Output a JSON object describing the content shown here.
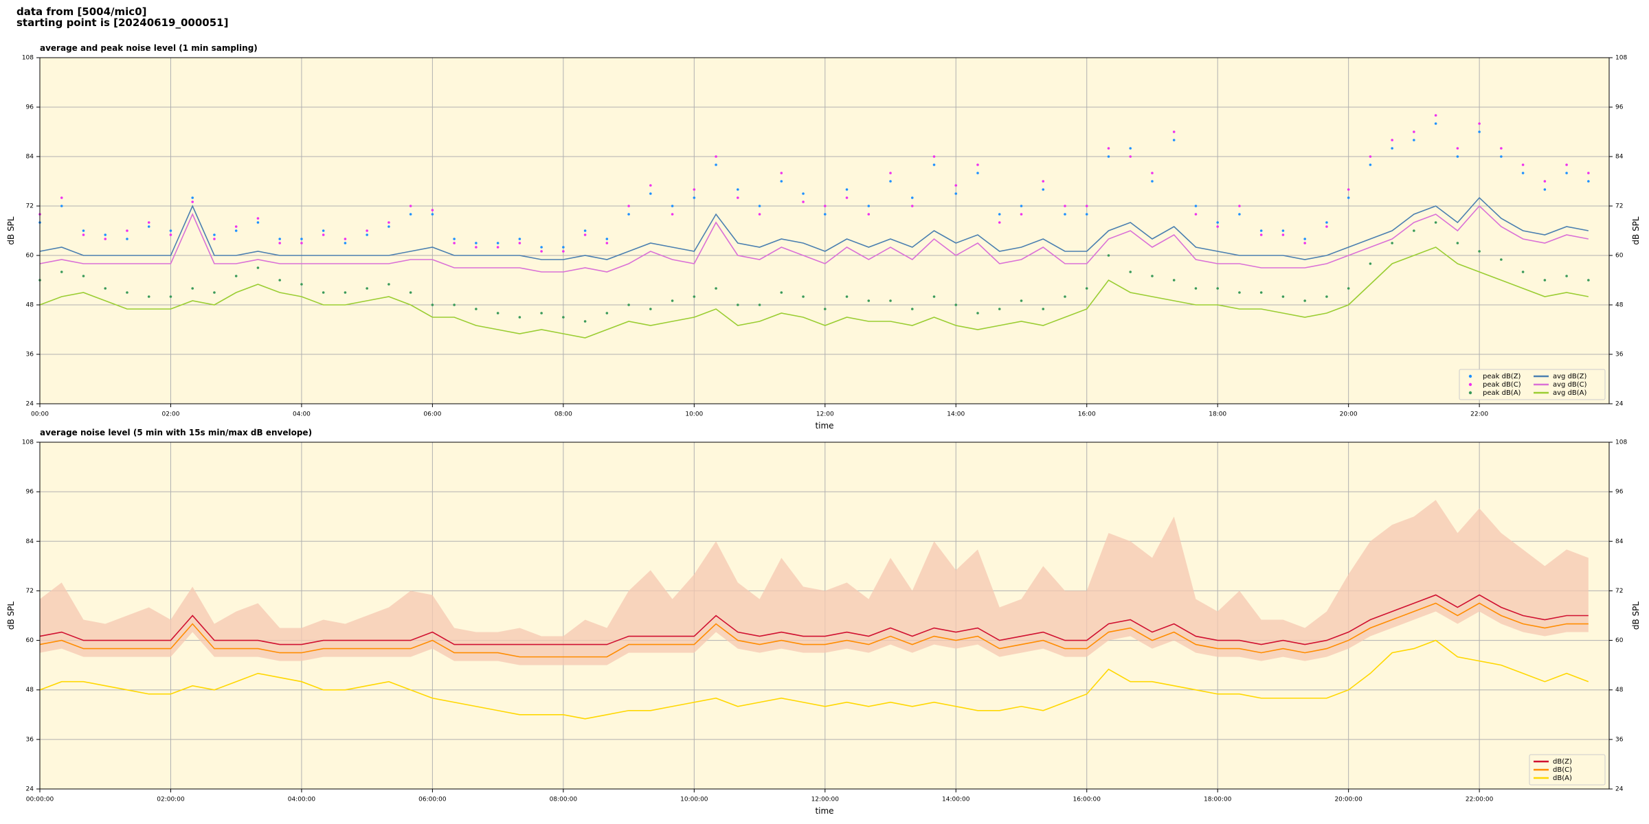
{
  "header": {
    "lines": [
      "data from [5004/mic0]",
      "starting point is [20240619_000051]"
    ]
  },
  "chart_data": [
    {
      "type": "line",
      "title": "average and peak noise level (1 min sampling)",
      "xlabel": "time",
      "ylabel": "dB SPL",
      "xlim": [
        "00:00",
        "23:59"
      ],
      "xticks": [
        "00:00",
        "02:00",
        "04:00",
        "06:00",
        "08:00",
        "10:00",
        "12:00",
        "14:00",
        "16:00",
        "18:00",
        "20:00",
        "22:00"
      ],
      "ylim": [
        24,
        108
      ],
      "yticks": [
        24,
        36,
        48,
        60,
        72,
        84,
        96,
        108
      ],
      "grid": true,
      "legend": "lower right",
      "background": "#fff8dc",
      "x": [
        "00:00",
        "00:20",
        "00:40",
        "01:00",
        "01:20",
        "01:40",
        "02:00",
        "02:20",
        "02:40",
        "03:00",
        "03:20",
        "03:40",
        "04:00",
        "04:20",
        "04:40",
        "05:00",
        "05:20",
        "05:40",
        "06:00",
        "06:20",
        "06:40",
        "07:00",
        "07:20",
        "07:40",
        "08:00",
        "08:20",
        "08:40",
        "09:00",
        "09:20",
        "09:40",
        "10:00",
        "10:20",
        "10:40",
        "11:00",
        "11:20",
        "11:40",
        "12:00",
        "12:20",
        "12:40",
        "13:00",
        "13:20",
        "13:40",
        "14:00",
        "14:20",
        "14:40",
        "15:00",
        "15:20",
        "15:40",
        "16:00",
        "16:20",
        "16:40",
        "17:00",
        "17:20",
        "17:40",
        "18:00",
        "18:20",
        "18:40",
        "19:00",
        "19:20",
        "19:40",
        "20:00",
        "20:20",
        "20:40",
        "21:00",
        "21:20",
        "21:40",
        "22:00",
        "22:20",
        "22:40",
        "23:00",
        "23:20",
        "23:40"
      ],
      "series": [
        {
          "name": "peak dB(Z)",
          "type": "scatter",
          "color": "#1e90ff",
          "values": [
            68,
            72,
            66,
            65,
            64,
            67,
            66,
            74,
            65,
            66,
            68,
            64,
            64,
            66,
            63,
            65,
            67,
            70,
            70,
            64,
            63,
            63,
            64,
            62,
            62,
            66,
            64,
            70,
            75,
            72,
            74,
            82,
            76,
            72,
            78,
            75,
            70,
            76,
            72,
            78,
            74,
            82,
            75,
            80,
            70,
            72,
            76,
            70,
            70,
            84,
            86,
            78,
            88,
            72,
            68,
            70,
            66,
            66,
            64,
            68,
            74,
            82,
            86,
            88,
            92,
            84,
            90,
            84,
            80,
            76,
            80,
            78
          ]
        },
        {
          "name": "peak dB(C)",
          "type": "scatter",
          "color": "#ee30ee",
          "values": [
            70,
            74,
            65,
            64,
            66,
            68,
            65,
            73,
            64,
            67,
            69,
            63,
            63,
            65,
            64,
            66,
            68,
            72,
            71,
            63,
            62,
            62,
            63,
            61,
            61,
            65,
            63,
            72,
            77,
            70,
            76,
            84,
            74,
            70,
            80,
            73,
            72,
            74,
            70,
            80,
            72,
            84,
            77,
            82,
            68,
            70,
            78,
            72,
            72,
            86,
            84,
            80,
            90,
            70,
            67,
            72,
            65,
            65,
            63,
            67,
            76,
            84,
            88,
            90,
            94,
            86,
            92,
            86,
            82,
            78,
            82,
            80
          ]
        },
        {
          "name": "peak dB(A)",
          "type": "scatter",
          "color": "#3a9a5a",
          "values": [
            54,
            56,
            55,
            52,
            51,
            50,
            50,
            52,
            51,
            55,
            57,
            54,
            53,
            51,
            51,
            52,
            53,
            51,
            48,
            48,
            47,
            46,
            45,
            46,
            45,
            44,
            46,
            48,
            47,
            49,
            50,
            52,
            48,
            48,
            51,
            50,
            47,
            50,
            49,
            49,
            47,
            50,
            48,
            46,
            47,
            49,
            47,
            50,
            52,
            60,
            56,
            55,
            54,
            52,
            52,
            51,
            51,
            50,
            49,
            50,
            52,
            58,
            63,
            66,
            68,
            63,
            61,
            59,
            56,
            54,
            55,
            54
          ]
        },
        {
          "name": "avg dB(Z)",
          "type": "line",
          "color": "#4a7fb0",
          "values": [
            61,
            62,
            60,
            60,
            60,
            60,
            60,
            72,
            60,
            60,
            61,
            60,
            60,
            60,
            60,
            60,
            60,
            61,
            62,
            60,
            60,
            60,
            60,
            59,
            59,
            60,
            59,
            61,
            63,
            62,
            61,
            70,
            63,
            62,
            64,
            63,
            61,
            64,
            62,
            64,
            62,
            66,
            63,
            65,
            61,
            62,
            64,
            61,
            61,
            66,
            68,
            64,
            67,
            62,
            61,
            60,
            60,
            60,
            59,
            60,
            62,
            64,
            66,
            70,
            72,
            68,
            74,
            69,
            66,
            65,
            67,
            66
          ]
        },
        {
          "name": "avg dB(C)",
          "type": "line",
          "color": "#da70d6",
          "values": [
            58,
            59,
            58,
            58,
            58,
            58,
            58,
            70,
            58,
            58,
            59,
            58,
            58,
            58,
            58,
            58,
            58,
            59,
            59,
            57,
            57,
            57,
            57,
            56,
            56,
            57,
            56,
            58,
            61,
            59,
            58,
            68,
            60,
            59,
            62,
            60,
            58,
            62,
            59,
            62,
            59,
            64,
            60,
            63,
            58,
            59,
            62,
            58,
            58,
            64,
            66,
            62,
            65,
            59,
            58,
            58,
            57,
            57,
            57,
            58,
            60,
            62,
            64,
            68,
            70,
            66,
            72,
            67,
            64,
            63,
            65,
            64
          ]
        },
        {
          "name": "avg dB(A)",
          "type": "line",
          "color": "#9acd32",
          "values": [
            48,
            50,
            51,
            49,
            47,
            47,
            47,
            49,
            48,
            51,
            53,
            51,
            50,
            48,
            48,
            49,
            50,
            48,
            45,
            45,
            43,
            42,
            41,
            42,
            41,
            40,
            42,
            44,
            43,
            44,
            45,
            47,
            43,
            44,
            46,
            45,
            43,
            45,
            44,
            44,
            43,
            45,
            43,
            42,
            43,
            44,
            43,
            45,
            47,
            54,
            51,
            50,
            49,
            48,
            48,
            47,
            47,
            46,
            45,
            46,
            48,
            53,
            58,
            60,
            62,
            58,
            56,
            54,
            52,
            50,
            51,
            50
          ]
        }
      ]
    },
    {
      "type": "line",
      "title": "average noise level (5 min with 15s min/max dB envelope)",
      "xlabel": "time",
      "ylabel": "dB SPL",
      "xlim": [
        "00:00",
        "23:59"
      ],
      "xticks": [
        "00:00:00",
        "02:00:00",
        "04:00:00",
        "06:00:00",
        "08:00:00",
        "10:00:00",
        "12:00:00",
        "14:00:00",
        "16:00:00",
        "18:00:00",
        "20:00:00",
        "22:00:00"
      ],
      "ylim": [
        24,
        108
      ],
      "yticks": [
        24,
        36,
        48,
        60,
        72,
        84,
        96,
        108
      ],
      "grid": true,
      "legend": "lower right",
      "background": "#fff8dc",
      "x": [
        "00:00",
        "00:20",
        "00:40",
        "01:00",
        "01:20",
        "01:40",
        "02:00",
        "02:20",
        "02:40",
        "03:00",
        "03:20",
        "03:40",
        "04:00",
        "04:20",
        "04:40",
        "05:00",
        "05:20",
        "05:40",
        "06:00",
        "06:20",
        "06:40",
        "07:00",
        "07:20",
        "07:40",
        "08:00",
        "08:20",
        "08:40",
        "09:00",
        "09:20",
        "09:40",
        "10:00",
        "10:20",
        "10:40",
        "11:00",
        "11:20",
        "11:40",
        "12:00",
        "12:20",
        "12:40",
        "13:00",
        "13:20",
        "13:40",
        "14:00",
        "14:20",
        "14:40",
        "15:00",
        "15:20",
        "15:40",
        "16:00",
        "16:20",
        "16:40",
        "17:00",
        "17:20",
        "17:40",
        "18:00",
        "18:20",
        "18:40",
        "19:00",
        "19:20",
        "19:40",
        "20:00",
        "20:20",
        "20:40",
        "21:00",
        "21:20",
        "21:40",
        "22:00",
        "22:20",
        "22:40",
        "23:00",
        "23:20",
        "23:40"
      ],
      "envelope": {
        "color": "#f6c8b2",
        "max": [
          70,
          74,
          65,
          64,
          66,
          68,
          65,
          73,
          64,
          67,
          69,
          63,
          63,
          65,
          64,
          66,
          68,
          72,
          71,
          63,
          62,
          62,
          63,
          61,
          61,
          65,
          63,
          72,
          77,
          70,
          76,
          84,
          74,
          70,
          80,
          73,
          72,
          74,
          70,
          80,
          72,
          84,
          77,
          82,
          68,
          70,
          78,
          72,
          72,
          86,
          84,
          80,
          90,
          70,
          67,
          72,
          65,
          65,
          63,
          67,
          76,
          84,
          88,
          90,
          94,
          86,
          92,
          86,
          82,
          78,
          82,
          80
        ],
        "min": [
          57,
          58,
          56,
          56,
          56,
          56,
          56,
          62,
          56,
          56,
          56,
          55,
          55,
          56,
          56,
          56,
          56,
          56,
          58,
          55,
          55,
          55,
          54,
          54,
          54,
          54,
          54,
          57,
          57,
          57,
          57,
          62,
          58,
          57,
          58,
          57,
          57,
          58,
          57,
          59,
          57,
          59,
          58,
          59,
          56,
          57,
          58,
          56,
          56,
          60,
          61,
          58,
          60,
          57,
          56,
          56,
          55,
          56,
          55,
          56,
          58,
          61,
          63,
          65,
          67,
          64,
          67,
          64,
          62,
          61,
          62,
          62
        ]
      },
      "series": [
        {
          "name": "dB(Z)",
          "type": "line",
          "color": "#d01030",
          "values": [
            61,
            62,
            60,
            60,
            60,
            60,
            60,
            66,
            60,
            60,
            60,
            59,
            59,
            60,
            60,
            60,
            60,
            60,
            62,
            59,
            59,
            59,
            59,
            59,
            59,
            59,
            59,
            61,
            61,
            61,
            61,
            66,
            62,
            61,
            62,
            61,
            61,
            62,
            61,
            63,
            61,
            63,
            62,
            63,
            60,
            61,
            62,
            60,
            60,
            64,
            65,
            62,
            64,
            61,
            60,
            60,
            59,
            60,
            59,
            60,
            62,
            65,
            67,
            69,
            71,
            68,
            71,
            68,
            66,
            65,
            66,
            66
          ]
        },
        {
          "name": "dB(C)",
          "type": "line",
          "color": "#ff8c00",
          "values": [
            59,
            60,
            58,
            58,
            58,
            58,
            58,
            64,
            58,
            58,
            58,
            57,
            57,
            58,
            58,
            58,
            58,
            58,
            60,
            57,
            57,
            57,
            56,
            56,
            56,
            56,
            56,
            59,
            59,
            59,
            59,
            64,
            60,
            59,
            60,
            59,
            59,
            60,
            59,
            61,
            59,
            61,
            60,
            61,
            58,
            59,
            60,
            58,
            58,
            62,
            63,
            60,
            62,
            59,
            58,
            58,
            57,
            58,
            57,
            58,
            60,
            63,
            65,
            67,
            69,
            66,
            69,
            66,
            64,
            63,
            64,
            64
          ]
        },
        {
          "name": "dB(A)",
          "type": "line",
          "color": "#ffd700",
          "values": [
            48,
            50,
            50,
            49,
            48,
            47,
            47,
            49,
            48,
            50,
            52,
            51,
            50,
            48,
            48,
            49,
            50,
            48,
            46,
            45,
            44,
            43,
            42,
            42,
            42,
            41,
            42,
            43,
            43,
            44,
            45,
            46,
            44,
            45,
            46,
            45,
            44,
            45,
            44,
            45,
            44,
            45,
            44,
            43,
            43,
            44,
            43,
            45,
            47,
            53,
            50,
            50,
            49,
            48,
            47,
            47,
            46,
            46,
            46,
            46,
            48,
            52,
            57,
            58,
            60,
            56,
            55,
            54,
            52,
            50,
            52,
            50
          ]
        }
      ]
    }
  ]
}
